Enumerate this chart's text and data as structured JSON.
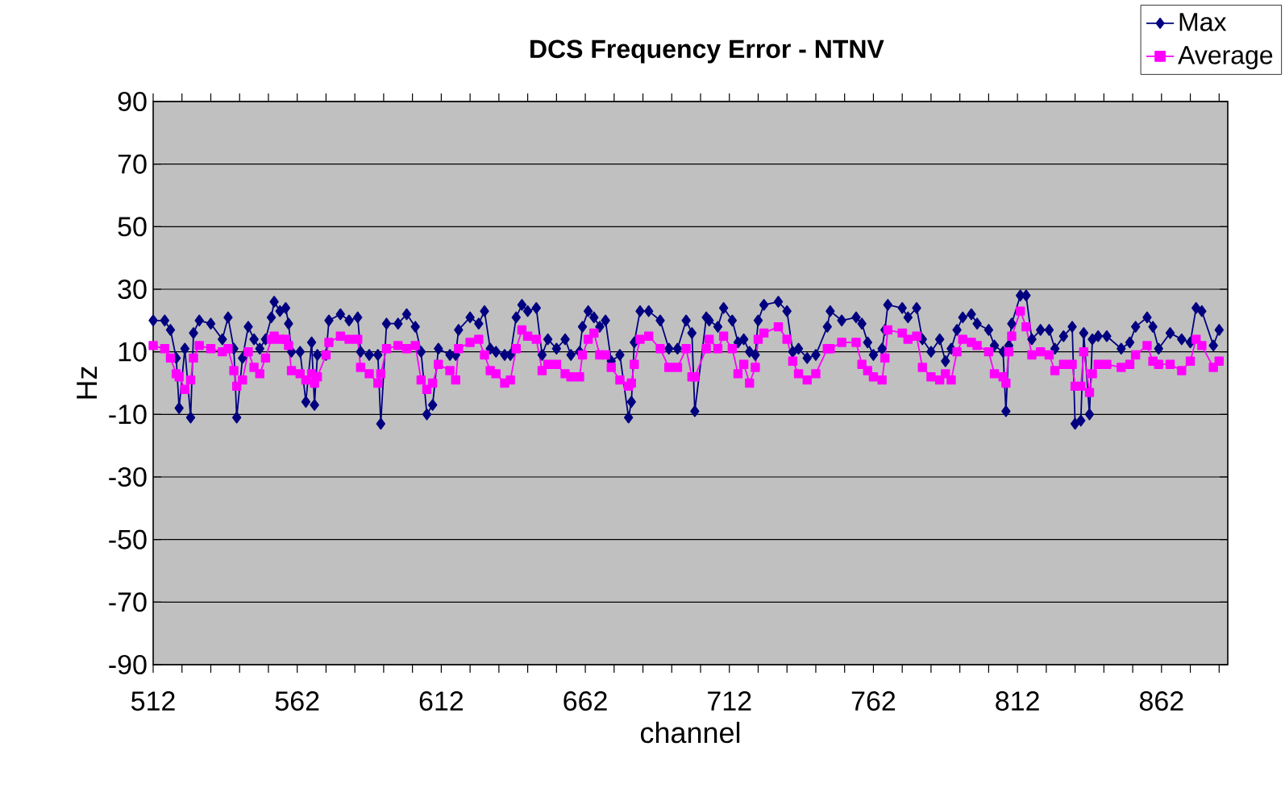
{
  "chart_data": {
    "type": "line",
    "title": "DCS  Frequency Error - NTNV",
    "xlabel": "channel",
    "ylabel": "Hz",
    "x": [
      512,
      516,
      518,
      520,
      521,
      523,
      525,
      526,
      528,
      532,
      536,
      538,
      540,
      541,
      543,
      545,
      547,
      549,
      551,
      553,
      554,
      556,
      558,
      559,
      560,
      563,
      565,
      567,
      568,
      569,
      572,
      573,
      577,
      580,
      583,
      584,
      587,
      590,
      591,
      593,
      597,
      600,
      603,
      605,
      607,
      609,
      611,
      615,
      617,
      618,
      622,
      625,
      627,
      629,
      631,
      634,
      636,
      638,
      640,
      642,
      645,
      647,
      649,
      652,
      655,
      657,
      660,
      661,
      663,
      665,
      667,
      669,
      671,
      674,
      677,
      678,
      679,
      681,
      684,
      688,
      691,
      694,
      697,
      699,
      700,
      704,
      705,
      708,
      710,
      713,
      715,
      717,
      719,
      721,
      722,
      724,
      729,
      732,
      734,
      736,
      739,
      742,
      746,
      747,
      751,
      756,
      758,
      760,
      762,
      765,
      766,
      767,
      772,
      774,
      777,
      779,
      782,
      785,
      787,
      789,
      791,
      793,
      796,
      798,
      802,
      804,
      807,
      808,
      809,
      810,
      813,
      815,
      817,
      820,
      823,
      825,
      828,
      831,
      832,
      834,
      835,
      837,
      838,
      840,
      843,
      848,
      851,
      853,
      857,
      859,
      861,
      865,
      869,
      872,
      874,
      876,
      880,
      882
    ],
    "series": [
      {
        "name": "Max",
        "color": "#000080",
        "marker": "diamond",
        "values": [
          20,
          20,
          17,
          8,
          -8,
          11,
          -11,
          16,
          20,
          19,
          14,
          21,
          11,
          -11,
          8,
          18,
          14,
          11,
          14,
          21,
          26,
          23,
          24,
          19,
          10,
          10,
          -6,
          13,
          -7,
          9,
          9,
          20,
          22,
          20,
          21,
          10,
          9,
          9,
          -13,
          19,
          19,
          22,
          18,
          10,
          -10,
          -7,
          11,
          9,
          9,
          17,
          21,
          19,
          23,
          11,
          10,
          9,
          9,
          21,
          25,
          23,
          24,
          9,
          14,
          11,
          14,
          9,
          10,
          18,
          23,
          21,
          18,
          20,
          7,
          9,
          -11,
          -6,
          13,
          23,
          23,
          20,
          11,
          11,
          20,
          16,
          -9,
          21,
          20,
          18,
          24,
          20,
          13,
          14,
          10,
          9,
          20,
          25,
          26,
          23,
          10,
          11,
          8,
          9,
          18,
          23,
          20,
          21,
          19,
          13,
          9,
          11,
          17,
          25,
          24,
          21,
          24,
          14,
          10,
          14,
          7,
          11,
          17,
          21,
          22,
          19,
          17,
          12,
          10,
          -9,
          12,
          19,
          28,
          28,
          14,
          17,
          17,
          11,
          15,
          18,
          -13,
          -12,
          16,
          -10,
          14,
          15,
          15,
          11,
          13,
          18,
          21,
          18,
          11,
          16,
          14,
          13,
          24,
          23,
          12,
          17
        ]
      },
      {
        "name": "Average",
        "color": "#ff00ff",
        "marker": "square",
        "values": [
          12,
          11,
          8,
          3,
          2,
          -2,
          1,
          8,
          12,
          11,
          10,
          11,
          4,
          -1,
          1,
          10,
          5,
          3,
          8,
          14,
          15,
          14,
          14,
          12,
          4,
          3,
          1,
          3,
          0,
          2,
          9,
          13,
          15,
          14,
          14,
          5,
          3,
          0,
          3,
          11,
          12,
          11,
          12,
          1,
          -2,
          0,
          6,
          4,
          1,
          11,
          13,
          14,
          9,
          4,
          3,
          0,
          1,
          11,
          17,
          15,
          14,
          4,
          6,
          6,
          3,
          2,
          2,
          9,
          14,
          16,
          9,
          9,
          5,
          1,
          -1,
          0,
          6,
          14,
          15,
          11,
          5,
          5,
          11,
          2,
          2,
          11,
          14,
          11,
          15,
          11,
          3,
          6,
          0,
          5,
          14,
          16,
          18,
          14,
          7,
          3,
          1,
          3,
          11,
          11,
          13,
          13,
          6,
          4,
          2,
          1,
          8,
          17,
          16,
          14,
          15,
          5,
          2,
          1,
          3,
          1,
          10,
          14,
          13,
          12,
          10,
          3,
          2,
          0,
          10,
          15,
          23,
          18,
          9,
          10,
          9,
          4,
          6,
          6,
          -1,
          -1,
          10,
          -3,
          3,
          6,
          6,
          5,
          6,
          9,
          12,
          7,
          6,
          6,
          4,
          7,
          14,
          12,
          5,
          7
        ]
      }
    ],
    "xlim": [
      512,
      885
    ],
    "ylim": [
      -90,
      90
    ],
    "xticks": [
      512,
      {
        "value": 522,
        "label": null
      },
      {
        "value": 532,
        "label": null
      },
      {
        "value": 542,
        "label": null
      },
      {
        "value": 552,
        "label": null
      },
      562,
      {
        "value": 572,
        "label": null
      },
      {
        "value": 582,
        "label": null
      },
      {
        "value": 592,
        "label": null
      },
      {
        "value": 602,
        "label": null
      },
      612,
      {
        "value": 622,
        "label": null
      },
      {
        "value": 632,
        "label": null
      },
      {
        "value": 642,
        "label": null
      },
      {
        "value": 652,
        "label": null
      },
      662,
      {
        "value": 672,
        "label": null
      },
      {
        "value": 682,
        "label": null
      },
      {
        "value": 692,
        "label": null
      },
      {
        "value": 702,
        "label": null
      },
      712,
      {
        "value": 722,
        "label": null
      },
      {
        "value": 732,
        "label": null
      },
      {
        "value": 742,
        "label": null
      },
      {
        "value": 752,
        "label": null
      },
      762,
      {
        "value": 772,
        "label": null
      },
      {
        "value": 782,
        "label": null
      },
      {
        "value": 792,
        "label": null
      },
      {
        "value": 802,
        "label": null
      },
      812,
      {
        "value": 822,
        "label": null
      },
      {
        "value": 832,
        "label": null
      },
      {
        "value": 842,
        "label": null
      },
      {
        "value": 852,
        "label": null
      },
      862,
      {
        "value": 872,
        "label": null
      },
      {
        "value": 882,
        "label": null
      }
    ],
    "yticks": [
      -90,
      -70,
      -50,
      -30,
      -10,
      10,
      30,
      50,
      70,
      90
    ],
    "grid": "y",
    "legend": "top right",
    "line_style": "solid"
  }
}
